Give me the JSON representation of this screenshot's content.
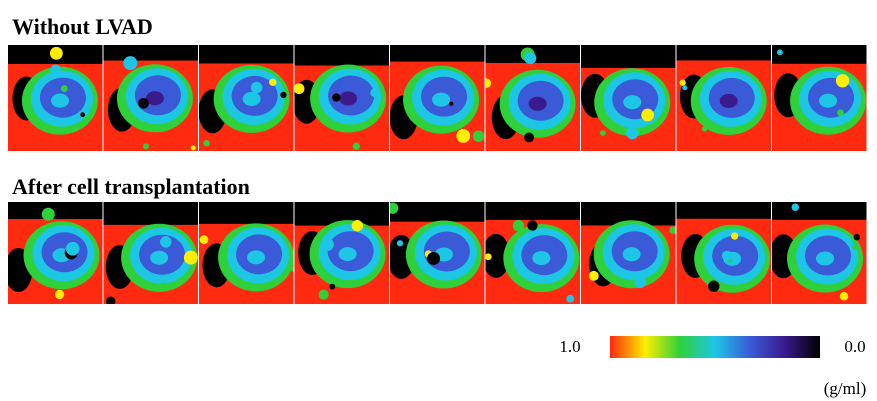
{
  "panels": [
    {
      "title": "Without LVAD"
    },
    {
      "title": "After cell transplantation"
    }
  ],
  "colorbar": {
    "ticks": [
      {
        "value": 1,
        "label": "1.0"
      },
      {
        "value": 0,
        "label": "0.0"
      }
    ],
    "unit": "(g/ml)",
    "colors": [
      "#ff2a10",
      "#ffee00",
      "#2ed13a",
      "#1ec6e6",
      "#3a5ad8",
      "#3a1a8c",
      "#000000"
    ]
  }
}
